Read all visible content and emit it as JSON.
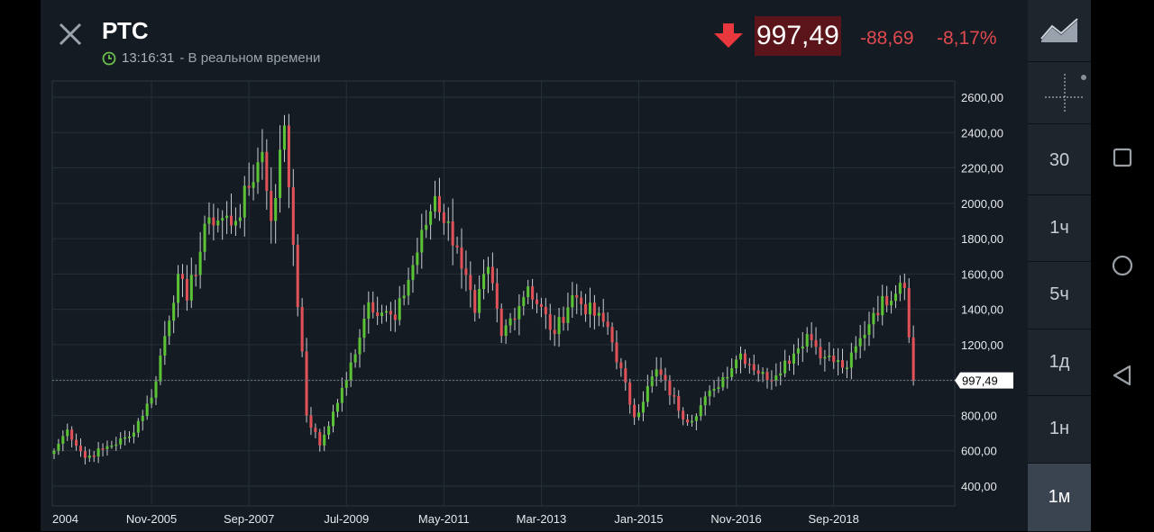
{
  "header": {
    "title": "РТС",
    "time": "13:16:31",
    "realtime_label": "- В реальном времени",
    "price": "997,49",
    "change": "-88,69",
    "change_pct": "-8,17%"
  },
  "colors": {
    "up": "#5bc236",
    "down": "#e05257",
    "price_bg": "#5b1419",
    "accent_red": "#e04a4f",
    "clock_green": "#6cc04a"
  },
  "toolbar": {
    "chart_type_icon": "area-chart-icon",
    "crosshair_icon": "crosshair-icon",
    "timeframes": [
      "30",
      "1ч",
      "5ч",
      "1д",
      "1н",
      "1м"
    ],
    "active_timeframe": "1м"
  },
  "nav": {
    "icons": [
      "recents-square-icon",
      "home-circle-icon",
      "back-triangle-icon"
    ]
  },
  "chart_data": {
    "type": "candlestick",
    "title": "",
    "ylim": [
      300,
      2700
    ],
    "y_ticks": [
      "2600,00",
      "2400,00",
      "2200,00",
      "2000,00",
      "1800,00",
      "1600,00",
      "1400,00",
      "1200,00",
      "1000,00",
      "800,00",
      "600,00",
      "400,00"
    ],
    "x_tick_labels": [
      "2004",
      "Nov-2005",
      "Sep-2007",
      "Jul-2009",
      "May-2011",
      "Mar-2013",
      "Jan-2015",
      "Nov-2016",
      "Sep-2018"
    ],
    "last_price_label": "997,49",
    "last_value": 997.49,
    "grid": true,
    "monthly_close_keypoints": [
      [
        "2004-01",
        600
      ],
      [
        "2004-04",
        720
      ],
      [
        "2004-08",
        560
      ],
      [
        "2004-12",
        610
      ],
      [
        "2005-06",
        680
      ],
      [
        "2005-11",
        900
      ],
      [
        "2006-05",
        1600
      ],
      [
        "2006-07",
        1450
      ],
      [
        "2006-12",
        1920
      ],
      [
        "2007-06",
        1900
      ],
      [
        "2007-12",
        2290
      ],
      [
        "2008-02",
        1900
      ],
      [
        "2008-05",
        2440
      ],
      [
        "2008-10",
        800
      ],
      [
        "2009-01",
        630
      ],
      [
        "2009-07",
        1000
      ],
      [
        "2009-12",
        1440
      ],
      [
        "2010-06",
        1340
      ],
      [
        "2011-03",
        2040
      ],
      [
        "2011-08",
        1750
      ],
      [
        "2011-12",
        1380
      ],
      [
        "2012-03",
        1640
      ],
      [
        "2012-06",
        1250
      ],
      [
        "2012-12",
        1530
      ],
      [
        "2013-06",
        1260
      ],
      [
        "2013-10",
        1480
      ],
      [
        "2014-06",
        1300
      ],
      [
        "2014-12",
        790
      ],
      [
        "2015-05",
        1060
      ],
      [
        "2015-12",
        760
      ],
      [
        "2016-06",
        950
      ],
      [
        "2016-12",
        1150
      ],
      [
        "2017-06",
        1000
      ],
      [
        "2017-12",
        1150
      ],
      [
        "2018-03",
        1260
      ],
      [
        "2018-07",
        1130
      ],
      [
        "2018-12",
        1070
      ],
      [
        "2019-06",
        1380
      ],
      [
        "2019-12",
        1550
      ],
      [
        "2020-01",
        1520
      ],
      [
        "2020-03",
        997
      ]
    ]
  }
}
